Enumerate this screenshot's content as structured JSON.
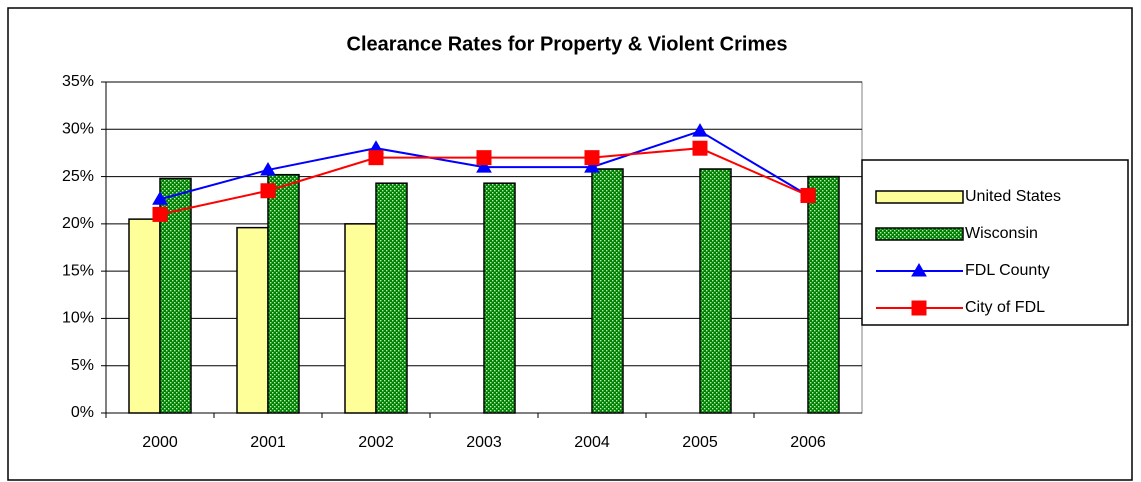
{
  "chart_data": {
    "type": "bar",
    "title": "Clearance Rates for Property & Violent Crimes",
    "categories": [
      "2000",
      "2001",
      "2002",
      "2003",
      "2004",
      "2005",
      "2006"
    ],
    "series": [
      {
        "name": "United States",
        "type": "bar",
        "color": "#ffff99",
        "values": [
          20.5,
          19.6,
          20.0,
          null,
          null,
          null,
          null
        ]
      },
      {
        "name": "Wisconsin",
        "type": "bar",
        "color": "#008000",
        "pattern": "dots",
        "values": [
          24.8,
          25.2,
          24.3,
          24.3,
          25.8,
          25.8,
          25.0
        ]
      },
      {
        "name": "FDL County",
        "type": "line",
        "color": "#0000ff",
        "marker": "triangle",
        "values": [
          22.6,
          25.7,
          28.0,
          26.0,
          26.0,
          29.8,
          23.0
        ]
      },
      {
        "name": "City of FDL",
        "type": "line",
        "color": "#ff0000",
        "marker": "square",
        "values": [
          21.0,
          23.5,
          27.0,
          27.0,
          27.0,
          28.0,
          23.0
        ]
      }
    ],
    "ylim": [
      0,
      35
    ],
    "yticks": [
      {
        "value": 0,
        "label": "0%"
      },
      {
        "value": 5,
        "label": "5%"
      },
      {
        "value": 10,
        "label": "10%"
      },
      {
        "value": 15,
        "label": "15%"
      },
      {
        "value": 20,
        "label": "20%"
      },
      {
        "value": 25,
        "label": "25%"
      },
      {
        "value": 30,
        "label": "30%"
      },
      {
        "value": 35,
        "label": "35%"
      }
    ],
    "grid": true,
    "legend": "right"
  }
}
